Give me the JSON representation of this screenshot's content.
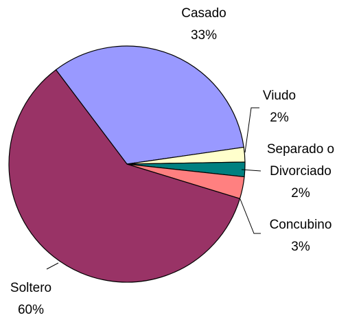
{
  "chart_data": {
    "type": "pie",
    "categories": [
      "Casado",
      "Viudo",
      "Separado o Divorciado",
      "Concubino",
      "Soltero"
    ],
    "values": [
      33,
      2,
      2,
      3,
      60
    ],
    "value_labels": [
      "33%",
      "2%",
      "2%",
      "3%",
      "60%"
    ],
    "colors": [
      "#9999ff",
      "#ffffcc",
      "#008080",
      "#ff8080",
      "#993366"
    ]
  }
}
